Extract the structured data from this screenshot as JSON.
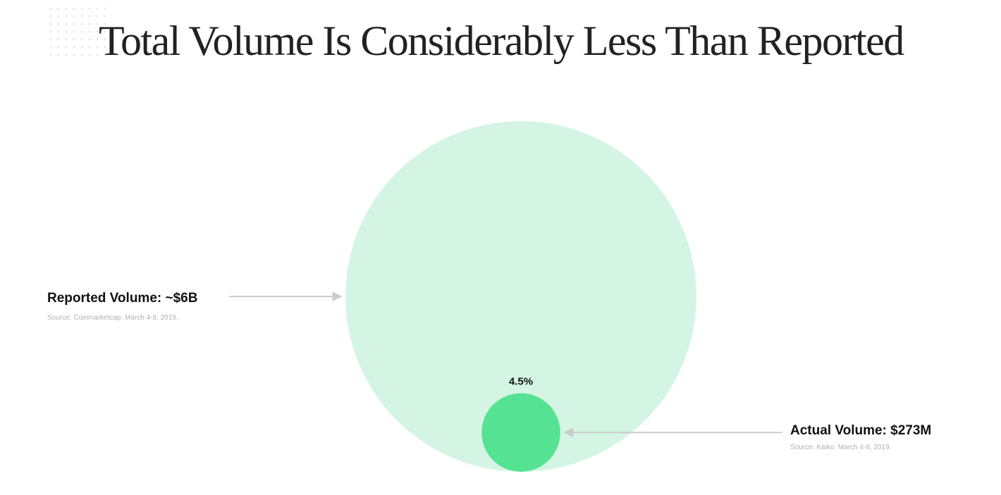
{
  "title": "Total Volume Is Considerably Less Than Reported",
  "colors": {
    "reported_circle": "#d4f5e3",
    "actual_circle": "#55e293",
    "arrow": "#cccccc",
    "dot_grid": "#e2e2e2"
  },
  "chart_data": {
    "type": "bubble",
    "unit": "USD",
    "series": [
      {
        "key": "reported",
        "label": "Reported Volume: ~$6B",
        "source": "Source: Coinmarketcap. March 4-8, 2019.",
        "value": 6000000000
      },
      {
        "key": "actual",
        "label": "Actual Volume: $273M",
        "source": "Source: Kaiko. March 4-8, 2019.",
        "value": 273000000,
        "percent_label": "4.5%"
      }
    ]
  }
}
